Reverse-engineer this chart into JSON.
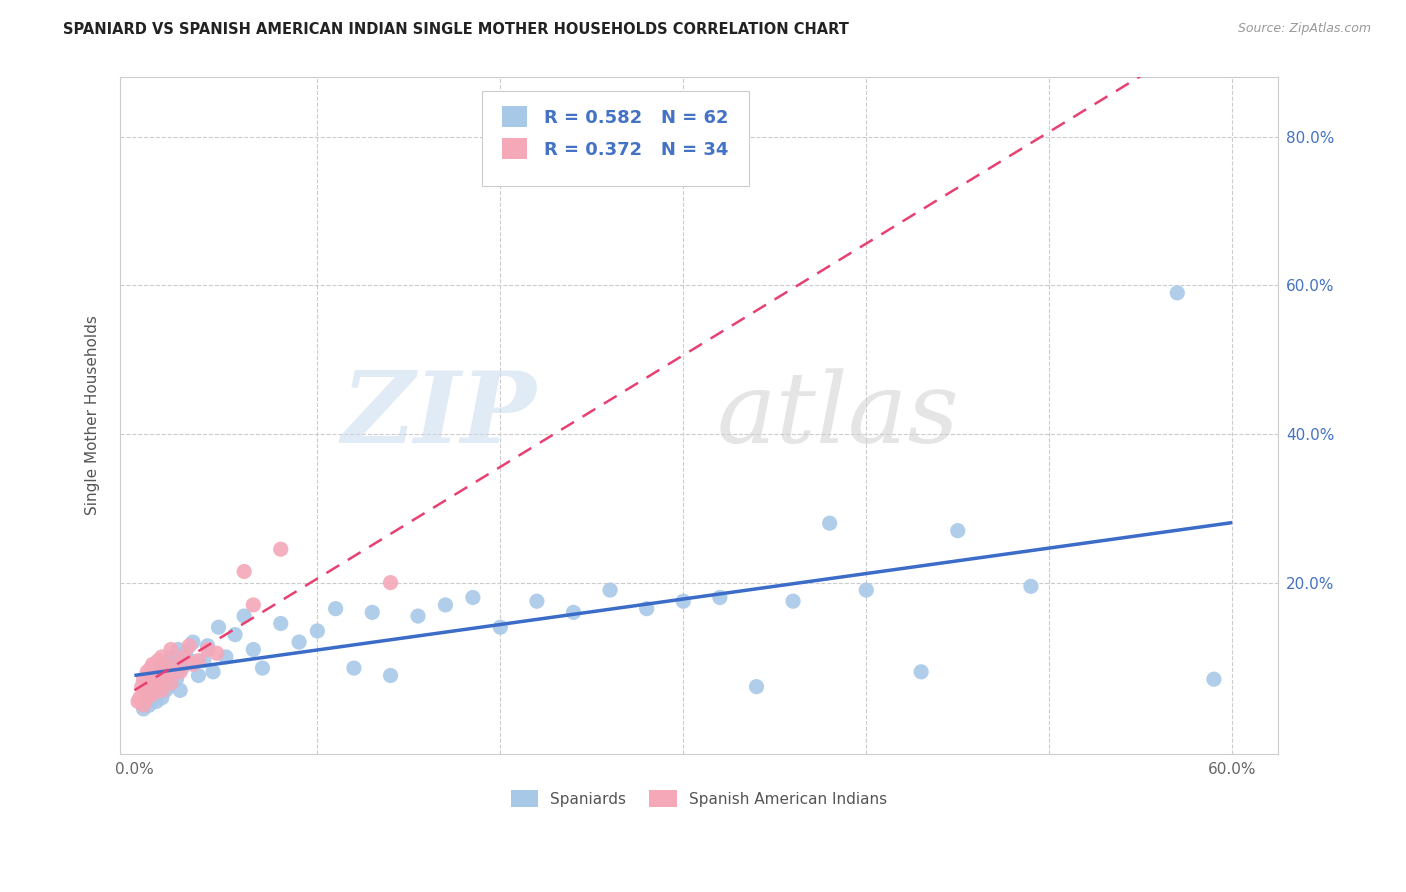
{
  "title": "SPANIARD VS SPANISH AMERICAN INDIAN SINGLE MOTHER HOUSEHOLDS CORRELATION CHART",
  "source": "Source: ZipAtlas.com",
  "ylabel": "Single Mother Households",
  "blue_R": "0.582",
  "blue_N": "62",
  "pink_R": "0.372",
  "pink_N": "34",
  "blue_color": "#A8C8E8",
  "pink_color": "#F4A8B8",
  "blue_line_color": "#3B6CC8",
  "pink_line_color": "#E84070",
  "legend_label_1": "Spaniards",
  "legend_label_2": "Spanish American Indians",
  "blue_x": [
    0.005,
    0.007,
    0.008,
    0.009,
    0.01,
    0.01,
    0.011,
    0.012,
    0.013,
    0.014,
    0.015,
    0.015,
    0.016,
    0.017,
    0.018,
    0.019,
    0.02,
    0.021,
    0.022,
    0.023,
    0.024,
    0.025,
    0.026,
    0.028,
    0.03,
    0.032,
    0.035,
    0.038,
    0.04,
    0.043,
    0.046,
    0.05,
    0.055,
    0.06,
    0.065,
    0.07,
    0.08,
    0.09,
    0.1,
    0.11,
    0.12,
    0.13,
    0.14,
    0.155,
    0.17,
    0.185,
    0.2,
    0.22,
    0.24,
    0.26,
    0.28,
    0.3,
    0.32,
    0.34,
    0.36,
    0.38,
    0.4,
    0.43,
    0.45,
    0.49,
    0.57,
    0.59
  ],
  "blue_y": [
    0.03,
    0.045,
    0.035,
    0.055,
    0.05,
    0.075,
    0.06,
    0.04,
    0.065,
    0.08,
    0.045,
    0.09,
    0.07,
    0.055,
    0.085,
    0.06,
    0.1,
    0.075,
    0.095,
    0.07,
    0.11,
    0.055,
    0.085,
    0.105,
    0.095,
    0.12,
    0.075,
    0.095,
    0.115,
    0.08,
    0.14,
    0.1,
    0.13,
    0.155,
    0.11,
    0.085,
    0.145,
    0.12,
    0.135,
    0.165,
    0.085,
    0.16,
    0.075,
    0.155,
    0.17,
    0.18,
    0.14,
    0.175,
    0.16,
    0.19,
    0.165,
    0.175,
    0.18,
    0.06,
    0.175,
    0.28,
    0.19,
    0.08,
    0.27,
    0.195,
    0.59,
    0.07
  ],
  "pink_x": [
    0.002,
    0.003,
    0.004,
    0.005,
    0.005,
    0.006,
    0.007,
    0.007,
    0.008,
    0.009,
    0.01,
    0.01,
    0.011,
    0.012,
    0.013,
    0.014,
    0.015,
    0.015,
    0.016,
    0.018,
    0.02,
    0.02,
    0.022,
    0.025,
    0.027,
    0.03,
    0.032,
    0.035,
    0.04,
    0.045,
    0.06,
    0.065,
    0.08,
    0.14
  ],
  "pink_y": [
    0.04,
    0.045,
    0.06,
    0.035,
    0.07,
    0.055,
    0.08,
    0.045,
    0.065,
    0.085,
    0.05,
    0.09,
    0.075,
    0.06,
    0.095,
    0.07,
    0.055,
    0.1,
    0.085,
    0.075,
    0.065,
    0.11,
    0.09,
    0.08,
    0.1,
    0.115,
    0.09,
    0.095,
    0.11,
    0.105,
    0.215,
    0.17,
    0.245,
    0.2
  ]
}
